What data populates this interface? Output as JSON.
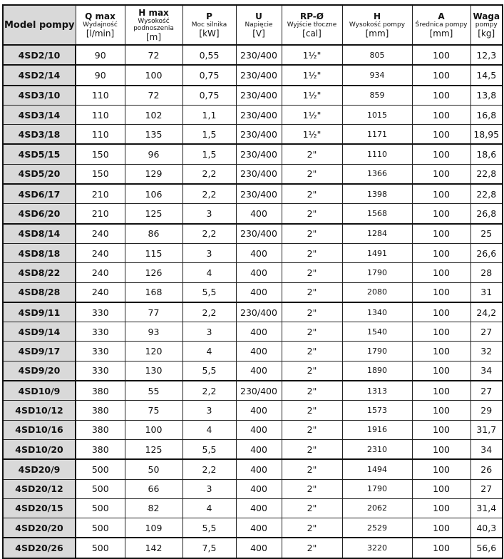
{
  "headers": [
    {
      "title": "Model pompy",
      "sub": "",
      "unit": ""
    },
    {
      "title": "Q max",
      "sub": "Wydajność",
      "unit": "[l/min]"
    },
    {
      "title": "H max",
      "sub": "Wysokość podnoszenia",
      "unit": "[m]"
    },
    {
      "title": "P",
      "sub": "Moc silnika",
      "unit": "[kW]"
    },
    {
      "title": "U",
      "sub": "Napięcie",
      "unit": "[V]"
    },
    {
      "title": "RP-Ø",
      "sub": "Wyjście tłoczne",
      "unit": "[cal]"
    },
    {
      "title": "H",
      "sub": "Wysokość pompy",
      "unit": "[mm]"
    },
    {
      "title": "A",
      "sub": "Średnica pompy",
      "unit": "[mm]"
    },
    {
      "title": "Waga",
      "sub": "pompy",
      "unit": "[kg]"
    }
  ],
  "rows": [
    [
      "4SD2/10",
      "90",
      "72",
      "0,55",
      "230/400",
      "1½\"",
      "805",
      "100",
      "12,3"
    ],
    [
      "4SD2/14",
      "90",
      "100",
      "0,75",
      "230/400",
      "1½\"",
      "934",
      "100",
      "14,5"
    ],
    [
      "4SD3/10",
      "110",
      "72",
      "0,75",
      "230/400",
      "1½\"",
      "859",
      "100",
      "13,8"
    ],
    [
      "4SD3/14",
      "110",
      "102",
      "1,1",
      "230/400",
      "1½\"",
      "1015",
      "100",
      "16,8"
    ],
    [
      "4SD3/18",
      "110",
      "135",
      "1,5",
      "230/400",
      "1½\"",
      "1171",
      "100",
      "18,95"
    ],
    [
      "4SD5/15",
      "150",
      "96",
      "1,5",
      "230/400",
      "2\"",
      "1110",
      "100",
      "18,6"
    ],
    [
      "4SD5/20",
      "150",
      "129",
      "2,2",
      "230/400",
      "2\"",
      "1366",
      "100",
      "22,8"
    ],
    [
      "4SD6/17",
      "210",
      "106",
      "2,2",
      "230/400",
      "2\"",
      "1398",
      "100",
      "22,8"
    ],
    [
      "4SD6/20",
      "210",
      "125",
      "3",
      "400",
      "2\"",
      "1568",
      "100",
      "26,8"
    ],
    [
      "4SD8/14",
      "240",
      "86",
      "2,2",
      "230/400",
      "2\"",
      "1284",
      "100",
      "25"
    ],
    [
      "4SD8/18",
      "240",
      "115",
      "3",
      "400",
      "2\"",
      "1491",
      "100",
      "26,6"
    ],
    [
      "4SD8/22",
      "240",
      "126",
      "4",
      "400",
      "2\"",
      "1790",
      "100",
      "28"
    ],
    [
      "4SD8/28",
      "240",
      "168",
      "5,5",
      "400",
      "2\"",
      "2080",
      "100",
      "31"
    ],
    [
      "4SD9/11",
      "330",
      "77",
      "2,2",
      "230/400",
      "2\"",
      "1340",
      "100",
      "24,2"
    ],
    [
      "4SD9/14",
      "330",
      "93",
      "3",
      "400",
      "2\"",
      "1540",
      "100",
      "27"
    ],
    [
      "4SD9/17",
      "330",
      "120",
      "4",
      "400",
      "2\"",
      "1790",
      "100",
      "32"
    ],
    [
      "4SD9/20",
      "330",
      "130",
      "5,5",
      "400",
      "2\"",
      "1890",
      "100",
      "34"
    ],
    [
      "4SD10/9",
      "380",
      "55",
      "2,2",
      "230/400",
      "2\"",
      "1313",
      "100",
      "27"
    ],
    [
      "4SD10/12",
      "380",
      "75",
      "3",
      "400",
      "2\"",
      "1573",
      "100",
      "29"
    ],
    [
      "4SD10/16",
      "380",
      "100",
      "4",
      "400",
      "2\"",
      "1916",
      "100",
      "31,7"
    ],
    [
      "4SD10/20",
      "380",
      "125",
      "5,5",
      "400",
      "2\"",
      "2310",
      "100",
      "34"
    ],
    [
      "4SD20/9",
      "500",
      "50",
      "2,2",
      "400",
      "2\"",
      "1494",
      "100",
      "26"
    ],
    [
      "4SD20/12",
      "500",
      "66",
      "3",
      "400",
      "2\"",
      "1790",
      "100",
      "27"
    ],
    [
      "4SD20/15",
      "500",
      "82",
      "4",
      "400",
      "2\"",
      "2062",
      "100",
      "31,4"
    ],
    [
      "4SD20/20",
      "500",
      "109",
      "5,5",
      "400",
      "2\"",
      "2529",
      "100",
      "40,3"
    ],
    [
      "4SD20/26",
      "500",
      "142",
      "7,5",
      "400",
      "2\"",
      "3220",
      "100",
      "56,6"
    ]
  ]
}
